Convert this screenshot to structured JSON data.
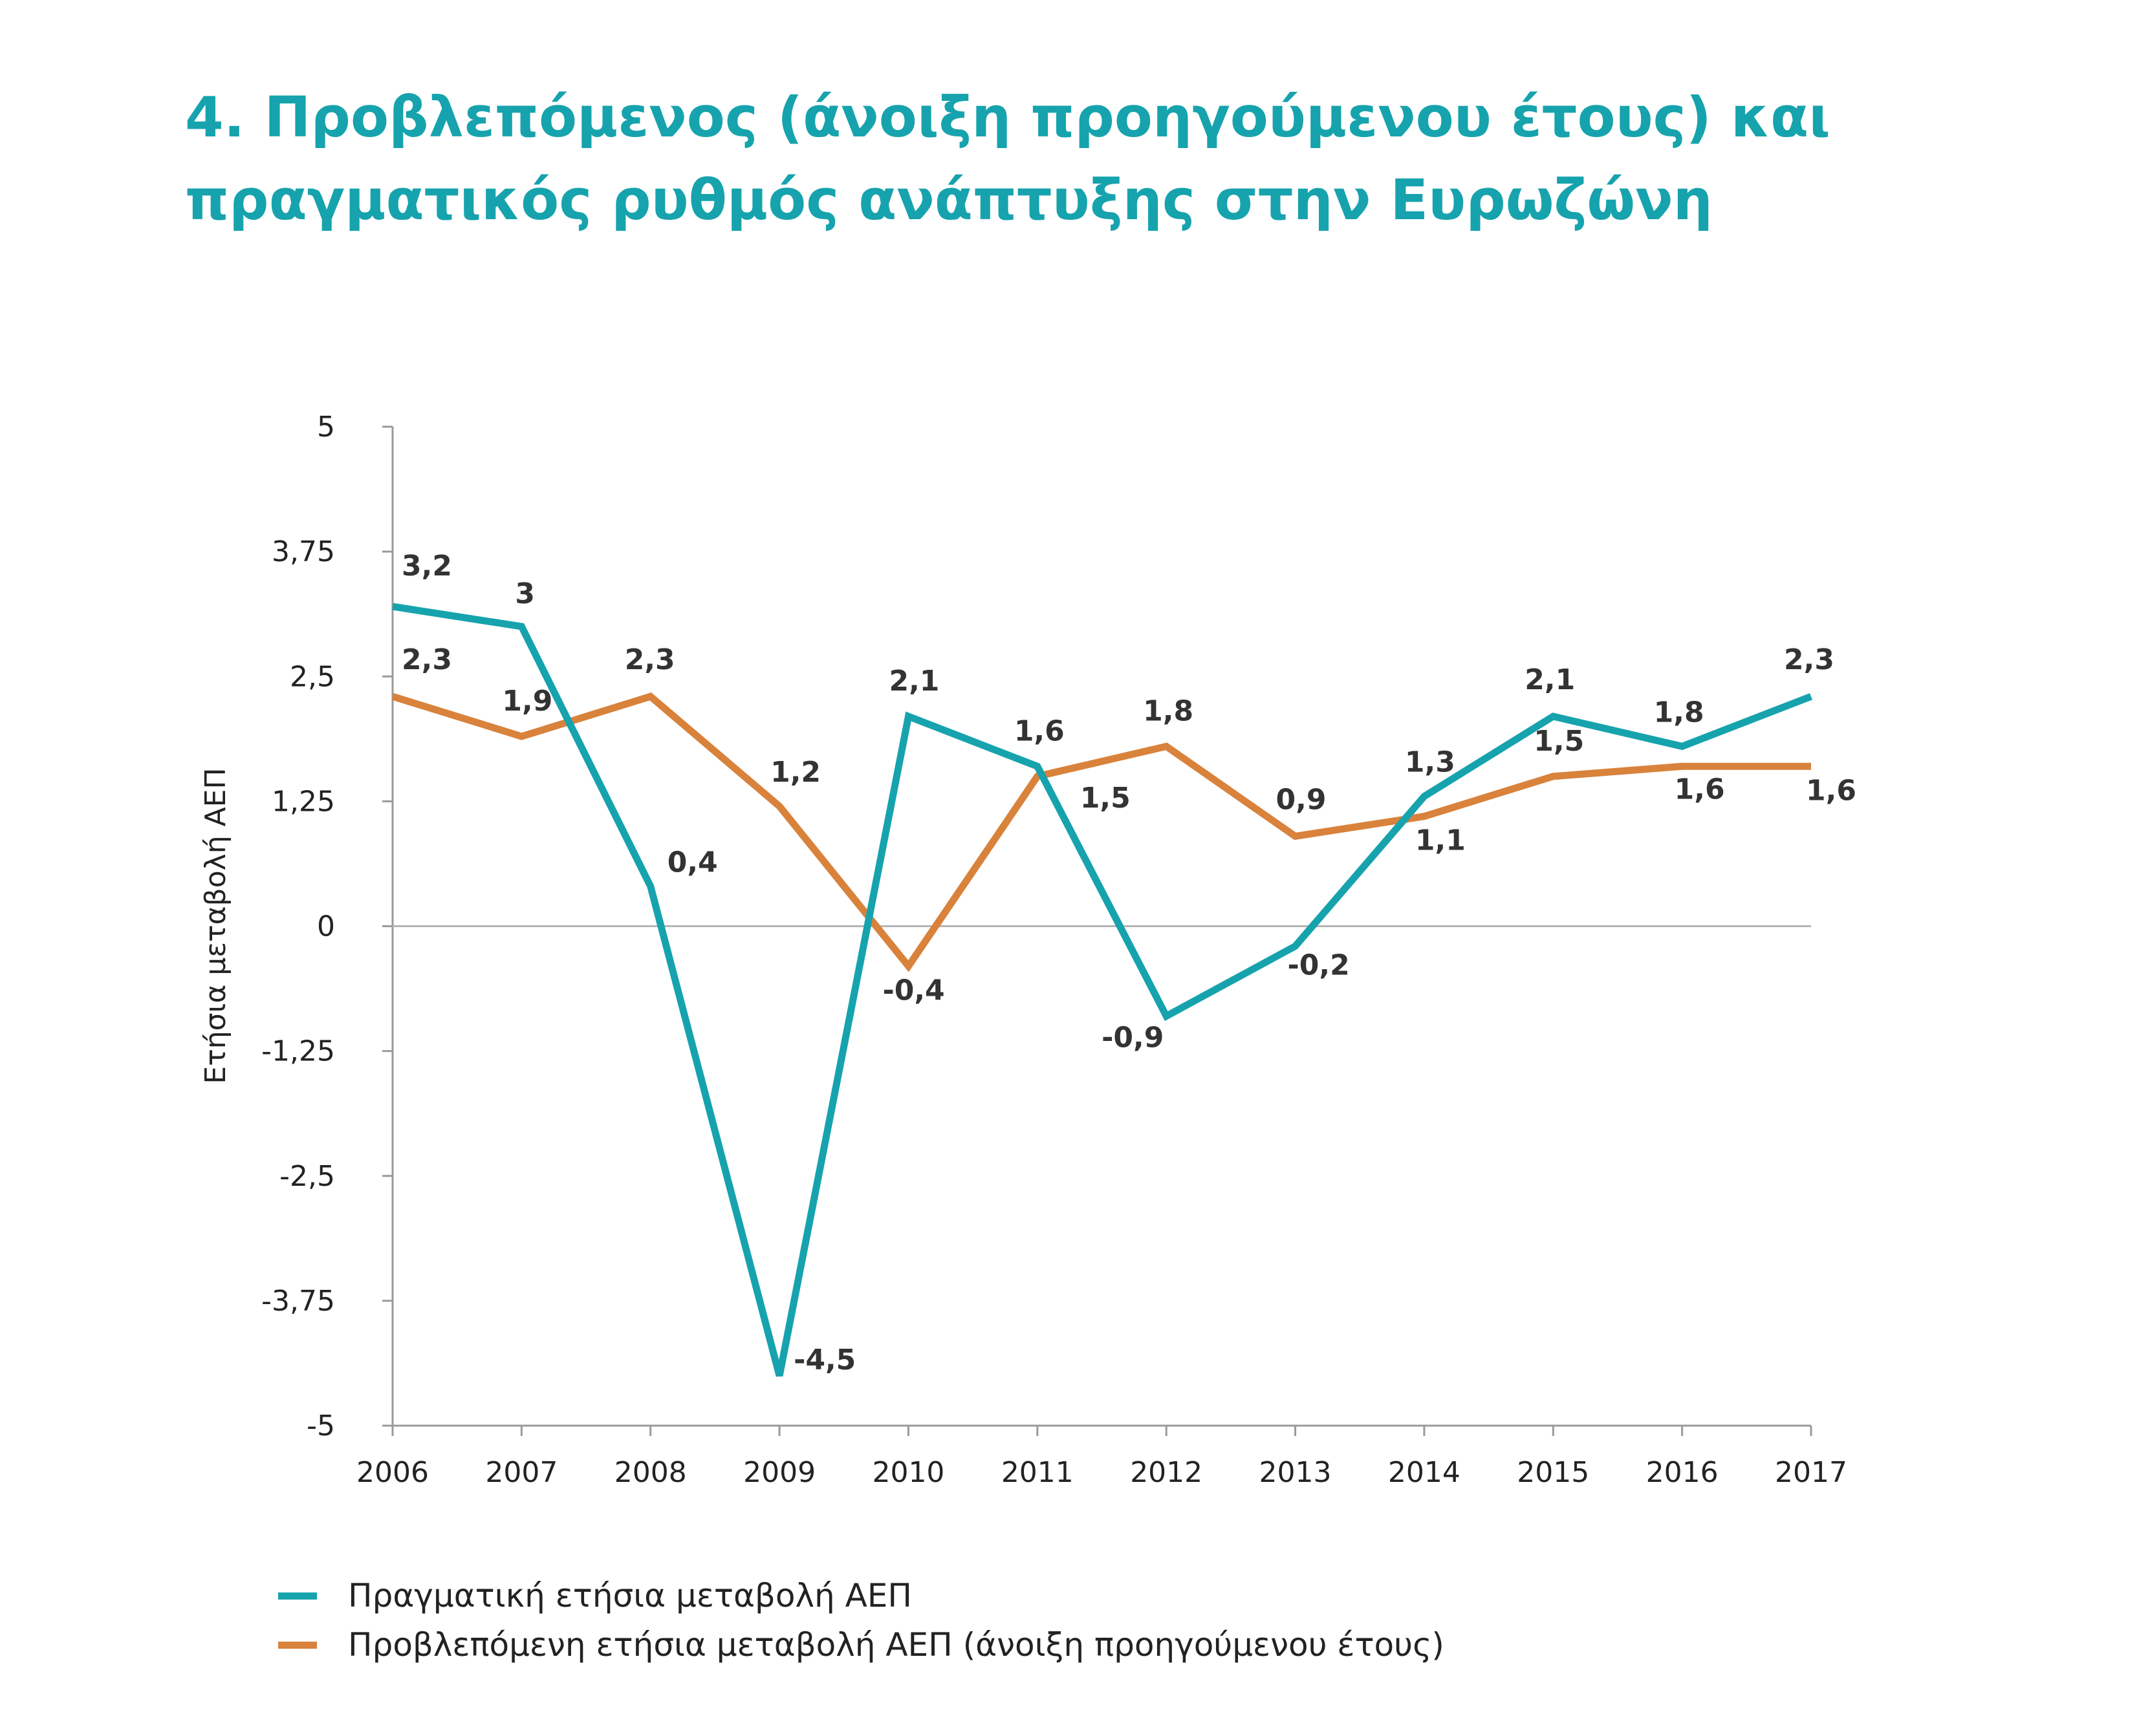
{
  "title": {
    "line1": "4. Προβλεπόμενος (άνοιξη προηγούμενου έτους) και",
    "line2": "πραγματικός ρυθμός ανάπτυξης στην Ευρωζώνη"
  },
  "chart_data": {
    "type": "line",
    "title": "4. Προβλεπόμενος (άνοιξη προηγούμενου έτους) και πραγματικός ρυθμός ανάπτυξης στην Ευρωζώνη",
    "xlabel": "",
    "ylabel": "Ετήσια μεταβολή ΑΕΠ",
    "categories": [
      "2006",
      "2007",
      "2008",
      "2009",
      "2010",
      "2011",
      "2012",
      "2013",
      "2014",
      "2015",
      "2016",
      "2017"
    ],
    "ylim": [
      -5,
      5
    ],
    "yticks": [
      5,
      3.75,
      2.5,
      1.25,
      0,
      -1.25,
      -2.5,
      -3.75,
      -5
    ],
    "ytick_labels": [
      "5",
      "3,75",
      "2,5",
      "1,25",
      "0",
      "-1,25",
      "-2,5",
      "-3,75",
      "-5"
    ],
    "grid": false,
    "legend_position": "bottom-left",
    "series": [
      {
        "name": "Πραγματική ετήσια μεταβολή ΑΕΠ",
        "color": "#16a3ad",
        "values": [
          3.2,
          3.0,
          0.4,
          -4.5,
          2.1,
          1.6,
          -0.9,
          -0.2,
          1.3,
          2.1,
          1.8,
          2.3
        ],
        "labels": [
          "3,2",
          "3",
          "0,4",
          "-4,5",
          "2,1",
          "1,6",
          "-0,9",
          "-0,2",
          "1,3",
          "2,1",
          "1,8",
          "2,3"
        ]
      },
      {
        "name": "Προβλεπόμενη ετήσια μεταβολή ΑΕΠ (άνοιξη προηγούμενου έτους)",
        "color": "#d9823b",
        "values": [
          2.3,
          1.9,
          2.3,
          1.2,
          -0.4,
          1.5,
          1.8,
          0.9,
          1.1,
          1.5,
          1.6,
          1.6
        ],
        "labels": [
          "2,3",
          "1,9",
          "2,3",
          "1,2",
          "-0,4",
          "1,5",
          "1,8",
          "0,9",
          "1,1",
          "1,5",
          "1,6",
          "1,6"
        ]
      }
    ]
  }
}
